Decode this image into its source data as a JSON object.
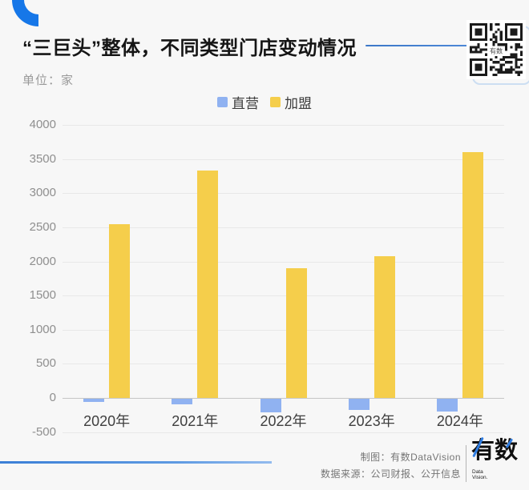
{
  "page": {
    "background": "#f7f7f7",
    "accent_blue": "#1677e8"
  },
  "header": {
    "title": "“三巨头”整体，不同类型门店变动情况",
    "unit_label": "单位：家"
  },
  "qr": {
    "center_text": "有数"
  },
  "chart_data": {
    "type": "bar",
    "title": "“三巨头”整体，不同类型门店变动情况",
    "unit": "家",
    "categories": [
      "2020年",
      "2021年",
      "2022年",
      "2023年",
      "2024年"
    ],
    "series": [
      {
        "name": "直营",
        "color": "#90b2f1",
        "values": [
          -50,
          -80,
          -200,
          -160,
          -190
        ]
      },
      {
        "name": "加盟",
        "color": "#f5ce4b",
        "values": [
          2550,
          3330,
          1900,
          2080,
          3600
        ]
      }
    ],
    "ylim": [
      -500,
      4000
    ],
    "y_ticks": [
      4000,
      3500,
      3000,
      2500,
      2000,
      1500,
      1000,
      500,
      0,
      -500
    ],
    "grid": true,
    "legend_position": "top-center"
  },
  "footer": {
    "credit": "制图：有数DataVision",
    "source": "数据来源：公司财报、公开信息",
    "logo_text": "有数",
    "logo_sub_line1": "Data",
    "logo_sub_line2": "Vision."
  },
  "colors": {
    "bar_direct": "#90b2f1",
    "bar_franchise": "#f5ce4b",
    "gridline": "#e8e8e8",
    "zero_line": "#c6c6c6",
    "title_text": "#151515",
    "axis_text": "#8f8f8f",
    "category_text": "#3f3f3f"
  }
}
